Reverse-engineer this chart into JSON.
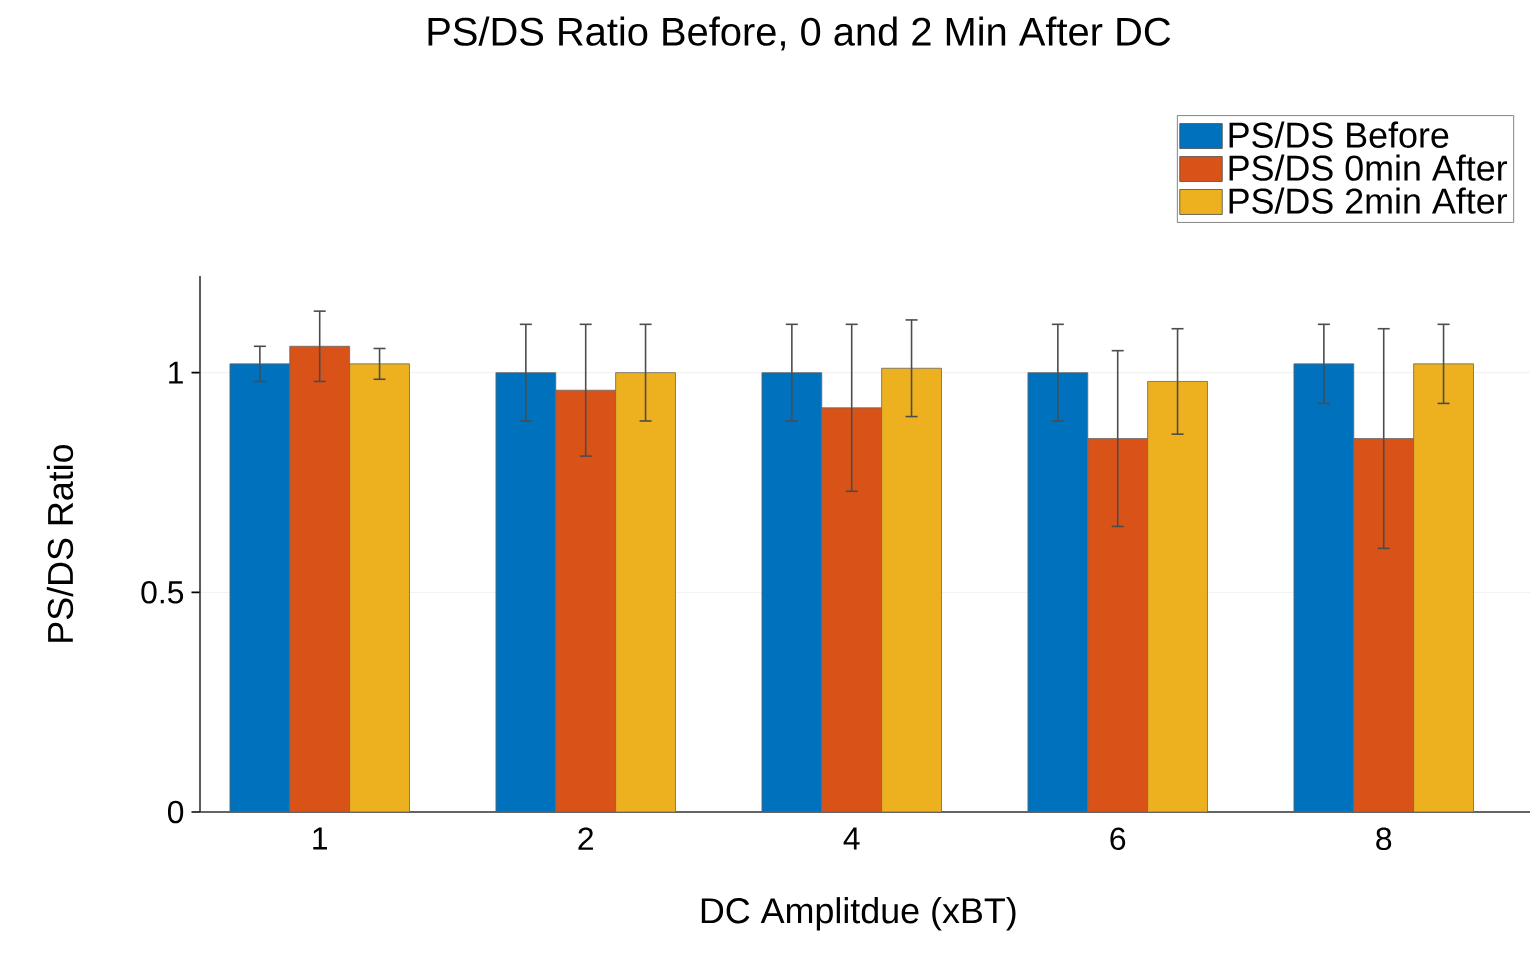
{
  "chart_data": {
    "type": "bar",
    "title": "PS/DS Ratio Before, 0 and 2 Min After DC",
    "xlabel": "DC Amplitdue (xBT)",
    "ylabel": "PS/DS Ratio",
    "categories": [
      "1",
      "2",
      "4",
      "6",
      "8"
    ],
    "series": [
      {
        "name": "PS/DS Before",
        "color": "#0072bd",
        "values": [
          1.02,
          1.0,
          1.0,
          1.0,
          1.02
        ],
        "errors": [
          0.04,
          0.11,
          0.11,
          0.11,
          0.09
        ]
      },
      {
        "name": "PS/DS 0min After",
        "color": "#d95319",
        "values": [
          1.06,
          0.96,
          0.92,
          0.85,
          0.85
        ],
        "errors": [
          0.08,
          0.15,
          0.19,
          0.2,
          0.25
        ]
      },
      {
        "name": "PS/DS 2min After",
        "color": "#edb120",
        "values": [
          1.02,
          1.0,
          1.01,
          0.98,
          1.02
        ],
        "errors": [
          0.035,
          0.11,
          0.11,
          0.12,
          0.09
        ]
      }
    ],
    "ylim": [
      0,
      1.22
    ],
    "yticks": [
      0,
      0.5,
      1
    ],
    "grid": "y",
    "legend": "top right"
  }
}
